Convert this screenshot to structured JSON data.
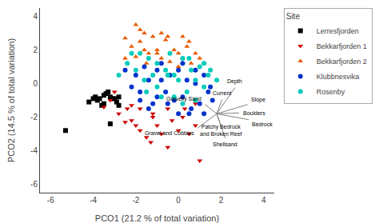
{
  "chart_data": {
    "type": "scatter",
    "xlabel": "PCO1 (21.2 % of total variation)",
    "ylabel": "PCO2 (14.5 % of total variation)",
    "xlim": [
      -6.5,
      4.5
    ],
    "ylim": [
      -6.5,
      4.5
    ],
    "xticks": [
      -6,
      -4,
      -2,
      0,
      2,
      4
    ],
    "yticks": [
      -6,
      -4,
      -2,
      0,
      2,
      4
    ],
    "grid": false,
    "legend": "upper right",
    "legend_title": "Site",
    "series": [
      {
        "name": "Lerresfjorden",
        "color": "black",
        "marker": "square",
        "points": [
          [
            -5.3,
            -2.8
          ],
          [
            -4.2,
            -1.1
          ],
          [
            -4.0,
            -0.9
          ],
          [
            -3.9,
            -0.8
          ],
          [
            -3.8,
            -1.0
          ],
          [
            -3.7,
            -0.9
          ],
          [
            -3.6,
            -1.3
          ],
          [
            -3.5,
            -1.2
          ],
          [
            -3.5,
            -0.7
          ],
          [
            -3.4,
            -0.6
          ],
          [
            -3.3,
            -0.5
          ],
          [
            -3.2,
            -0.8
          ],
          [
            -3.2,
            -2.4
          ],
          [
            -3.1,
            -0.9
          ],
          [
            -3.0,
            -0.9
          ],
          [
            -2.9,
            -1.1
          ],
          [
            -2.8,
            -1.3
          ],
          [
            -2.8,
            -0.8
          ]
        ]
      },
      {
        "name": "Bekkarfjorden 1",
        "color": "#cc0000",
        "marker": "triangle-down",
        "points": [
          [
            -3.5,
            -1.4
          ],
          [
            -3.2,
            -1.0
          ],
          [
            -3.0,
            -0.5
          ],
          [
            -2.8,
            -1.8
          ],
          [
            -2.5,
            -2.3
          ],
          [
            -2.4,
            -1.5
          ],
          [
            -2.2,
            -1.3
          ],
          [
            -2.0,
            -2.5
          ],
          [
            -1.8,
            -2.8
          ],
          [
            -1.5,
            -3.2
          ],
          [
            -1.3,
            -3.5
          ],
          [
            -1.2,
            -2.0
          ],
          [
            -1.0,
            -2.5
          ],
          [
            -0.8,
            -3.0
          ],
          [
            -0.5,
            -3.8
          ],
          [
            -0.3,
            -2.2
          ],
          [
            0.0,
            -2.8
          ],
          [
            0.2,
            -2.0
          ],
          [
            0.5,
            -3.0
          ],
          [
            0.8,
            -2.5
          ],
          [
            1.0,
            -4.6
          ],
          [
            1.2,
            -1.8
          ],
          [
            -2.2,
            -2.2
          ],
          [
            -1.8,
            -1.5
          ],
          [
            -1.2,
            -1.8
          ],
          [
            0.3,
            -1.5
          ],
          [
            -0.5,
            -1.5
          ],
          [
            0.8,
            -1.2
          ]
        ]
      },
      {
        "name": "Bekkarfjorden 2",
        "color": "#e85c00",
        "marker": "triangle-up",
        "points": [
          [
            -2.5,
            2.7
          ],
          [
            -2.2,
            2.2
          ],
          [
            -2.0,
            1.6
          ],
          [
            -1.8,
            2.5
          ],
          [
            -1.6,
            3.0
          ],
          [
            -1.4,
            1.8
          ],
          [
            -1.2,
            2.8
          ],
          [
            -1.0,
            2.0
          ],
          [
            -0.8,
            1.5
          ],
          [
            -0.6,
            2.6
          ],
          [
            -0.4,
            1.3
          ],
          [
            -0.2,
            2.0
          ],
          [
            0.0,
            1.8
          ],
          [
            0.2,
            1.5
          ],
          [
            0.4,
            2.2
          ],
          [
            0.6,
            1.2
          ],
          [
            0.8,
            1.8
          ],
          [
            1.0,
            1.5
          ],
          [
            -1.5,
            1.2
          ],
          [
            -1.0,
            1.8
          ],
          [
            0.5,
            2.5
          ],
          [
            -0.5,
            2.8
          ],
          [
            0.2,
            2.8
          ],
          [
            -1.8,
            3.2
          ],
          [
            -0.8,
            3.0
          ],
          [
            0.0,
            1.0
          ],
          [
            1.2,
            1.2
          ],
          [
            -2.5,
            1.5
          ],
          [
            -2.0,
            3.5
          ],
          [
            -1.6,
            2.0
          ],
          [
            0.8,
            0.8
          ]
        ]
      },
      {
        "name": "Klubbnesvika",
        "color": "#0033cc",
        "marker": "circle",
        "points": [
          [
            -2.5,
            0.8
          ],
          [
            -2.2,
            -0.2
          ],
          [
            -2.0,
            0.5
          ],
          [
            -1.8,
            -0.5
          ],
          [
            -1.6,
            1.0
          ],
          [
            -1.4,
            0.2
          ],
          [
            -1.2,
            -1.2
          ],
          [
            -1.0,
            0.8
          ],
          [
            -0.8,
            0.2
          ],
          [
            -0.6,
            -0.5
          ],
          [
            -0.4,
            0.5
          ],
          [
            -0.2,
            -1.0
          ],
          [
            0.0,
            0.8
          ],
          [
            0.2,
            -0.8
          ],
          [
            0.4,
            0.2
          ],
          [
            0.6,
            -1.5
          ],
          [
            0.8,
            0.0
          ],
          [
            1.0,
            -1.2
          ],
          [
            1.2,
            0.5
          ],
          [
            1.4,
            -0.5
          ],
          [
            -1.8,
            -1.0
          ],
          [
            -1.0,
            -0.8
          ],
          [
            0.5,
            -1.8
          ],
          [
            1.5,
            -0.2
          ],
          [
            -0.5,
            -1.2
          ],
          [
            0.8,
            0.8
          ],
          [
            1.6,
            -1.0
          ],
          [
            -0.8,
            1.2
          ],
          [
            0.2,
            1.2
          ],
          [
            -1.4,
            -1.5
          ],
          [
            1.2,
            -1.8
          ],
          [
            0.0,
            -1.8
          ]
        ]
      },
      {
        "name": "Rosenby",
        "color": "#00ccbb",
        "marker": "circle",
        "points": [
          [
            -2.8,
            0.5
          ],
          [
            -2.4,
            1.2
          ],
          [
            -2.0,
            0.8
          ],
          [
            -1.8,
            1.8
          ],
          [
            -1.6,
            0.2
          ],
          [
            -1.4,
            1.5
          ],
          [
            -1.2,
            0.5
          ],
          [
            -1.0,
            1.2
          ],
          [
            -0.8,
            -0.8
          ],
          [
            -0.6,
            0.8
          ],
          [
            -0.4,
            1.8
          ],
          [
            -0.2,
            0.5
          ],
          [
            0.0,
            0.2
          ],
          [
            0.2,
            1.5
          ],
          [
            0.4,
            -0.5
          ],
          [
            0.6,
            0.8
          ],
          [
            0.8,
            0.2
          ],
          [
            1.0,
            1.0
          ],
          [
            1.2,
            -0.2
          ],
          [
            1.4,
            0.5
          ],
          [
            -2.2,
            1.8
          ],
          [
            -1.5,
            -0.5
          ],
          [
            0.5,
            1.5
          ],
          [
            1.5,
            0.8
          ],
          [
            -0.5,
            0.5
          ],
          [
            -1.0,
            -0.2
          ],
          [
            1.8,
            0.2
          ],
          [
            -0.2,
            -0.8
          ],
          [
            0.2,
            -1.2
          ],
          [
            1.2,
            1.2
          ],
          [
            0.8,
            -1.0
          ]
        ]
      }
    ],
    "biplot": {
      "color": "gray",
      "origin": [
        1.8,
        -1.8
      ],
      "vectors": [
        {
          "label": "Depth",
          "end": [
            2.65,
            -0.25
          ]
        },
        {
          "label": "Current",
          "end": [
            2.05,
            -0.95
          ]
        },
        {
          "label": "Gravelly Sand",
          "end": [
            1.25,
            -1.25
          ]
        },
        {
          "label": "Slope",
          "end": [
            3.25,
            -1.25
          ]
        },
        {
          "label": "Boulders",
          "end": [
            2.85,
            -1.75
          ]
        },
        {
          "label": "Bedrock",
          "end": [
            3.3,
            -2.15
          ]
        },
        {
          "label": "Patchy Bedrock\nand Broken Reef",
          "end": [
            2.0,
            -2.55
          ]
        },
        {
          "label": "Shellsand",
          "end": [
            2.2,
            -3.25
          ]
        },
        {
          "label": "Gravel and Cobbles",
          "end": [
            0.9,
            -2.65
          ]
        }
      ]
    }
  }
}
